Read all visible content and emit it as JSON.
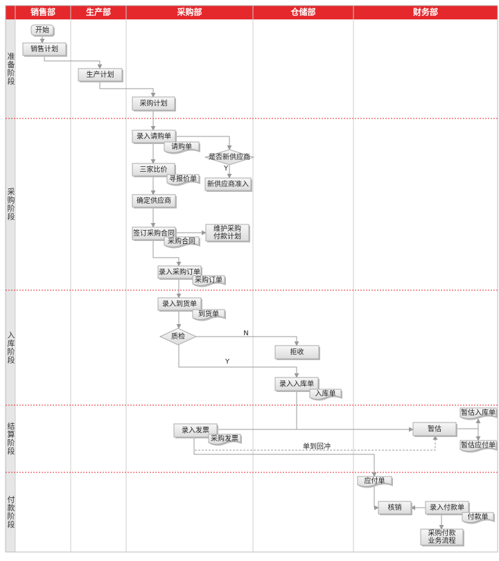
{
  "header": {
    "lanes": [
      "销售部",
      "生产部",
      "采购部",
      "仓储部",
      "财务部"
    ]
  },
  "stages": [
    "准备阶段",
    "采购阶段",
    "入库阶段",
    "结算阶段",
    "付款阶段"
  ],
  "nodes": [
    {
      "lines": [
        "开始"
      ]
    },
    {
      "lines": [
        "销售计划"
      ]
    },
    {
      "lines": [
        "生产计划"
      ]
    },
    {
      "lines": [
        "采购计划"
      ]
    },
    {
      "lines": [
        "录入请购单"
      ]
    },
    {
      "lines": [
        "请购单"
      ]
    },
    {
      "lines": [
        "是否新供应商"
      ]
    },
    {
      "lines": [
        "新供应商准入"
      ]
    },
    {
      "lines": [
        "三家比价"
      ]
    },
    {
      "lines": [
        "寻报价单"
      ]
    },
    {
      "lines": [
        "确定供应商"
      ]
    },
    {
      "lines": [
        "签订采购合同"
      ]
    },
    {
      "lines": [
        "采购合同"
      ]
    },
    {
      "lines": [
        "维护采购",
        "付款计划"
      ]
    },
    {
      "lines": [
        "录入采购订单"
      ]
    },
    {
      "lines": [
        "采购订单"
      ]
    },
    {
      "lines": [
        "录入到货单"
      ]
    },
    {
      "lines": [
        "到货单"
      ]
    },
    {
      "lines": [
        "质检"
      ]
    },
    {
      "lines": [
        "拒收"
      ]
    },
    {
      "lines": [
        "录入入库单"
      ]
    },
    {
      "lines": [
        "入库单"
      ]
    },
    {
      "lines": [
        "录入发票"
      ]
    },
    {
      "lines": [
        "采购发票"
      ]
    },
    {
      "lines": [
        "暂估"
      ]
    },
    {
      "lines": [
        "暂估入库单"
      ]
    },
    {
      "lines": [
        "暂估应付单"
      ]
    },
    {
      "lines": [
        "应付单"
      ]
    },
    {
      "lines": [
        "核销"
      ]
    },
    {
      "lines": [
        "录入付款单"
      ]
    },
    {
      "lines": [
        "付款单"
      ]
    },
    {
      "lines": [
        "采购付款",
        "业务流程"
      ]
    }
  ],
  "edge_labels": [
    "Y",
    "N",
    "Y",
    "单到回冲"
  ]
}
